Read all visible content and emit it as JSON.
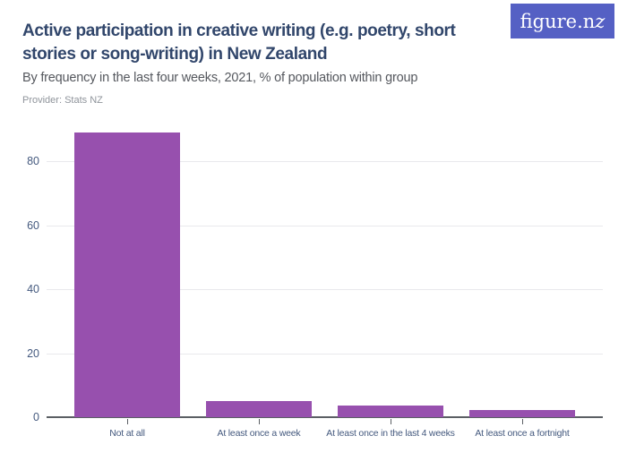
{
  "logo": {
    "text_main": "figure.n",
    "text_z": "z",
    "bg_color": "#5560c4",
    "text_color": "#ffffff"
  },
  "header": {
    "title": "Active participation in creative writing (e.g. poetry, short stories or song-writing) in New Zealand",
    "subtitle": "By frequency in the last four weeks, 2021, % of population within group",
    "provider": "Provider: Stats NZ"
  },
  "chart_data": {
    "type": "bar",
    "title": "Active participation in creative writing (e.g. poetry, short stories or song-writing) in New Zealand",
    "subtitle": "By frequency in the last four weeks, 2021, % of population within group",
    "categories": [
      "Not at all",
      "At least once a week",
      "At least once in the last 4 weeks",
      "At least once a fortnight"
    ],
    "values": [
      89,
      5.1,
      3.5,
      2.2
    ],
    "xlabel": "",
    "ylabel": "",
    "ylim": [
      0,
      90
    ],
    "yticks": [
      0,
      20,
      40,
      60,
      80
    ],
    "grid": true,
    "legend": false,
    "bar_color": "#9750ae",
    "gridline_color": "#e9e9ec",
    "axis_line_color": "#5b5f64",
    "tick_label_color": "#44597e"
  }
}
